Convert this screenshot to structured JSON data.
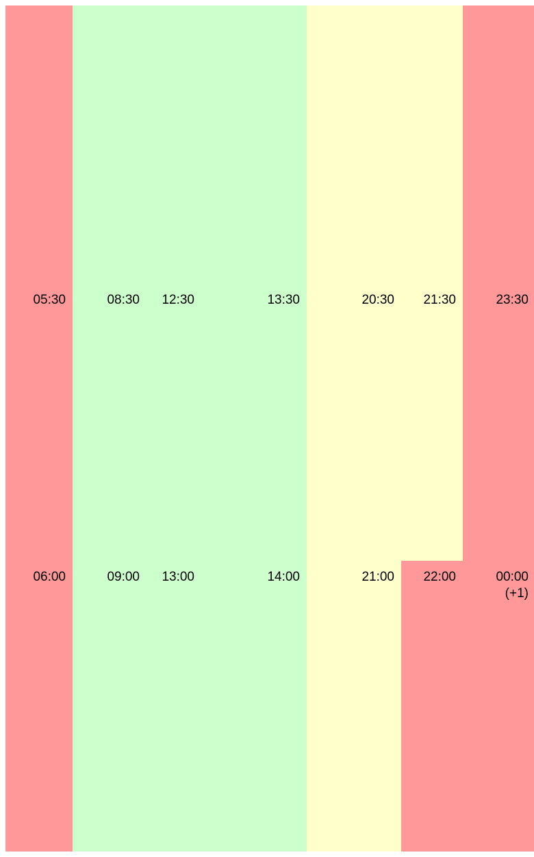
{
  "colors": {
    "red": "#ff9999",
    "green": "#ccffcc",
    "yellow": "#ffffcc"
  },
  "row1": {
    "c1": "05:30",
    "c2": "08:30",
    "c3": "12:30",
    "c4": "13:30",
    "c5": "20:30",
    "c6": "21:30",
    "c7": "23:30"
  },
  "row2": {
    "c1": "06:00",
    "c2": "09:00",
    "c3": "13:00",
    "c4": "14:00",
    "c5": "21:00",
    "c6": "22:00",
    "c7_line1": "00:00",
    "c7_line2": "(+1)"
  }
}
